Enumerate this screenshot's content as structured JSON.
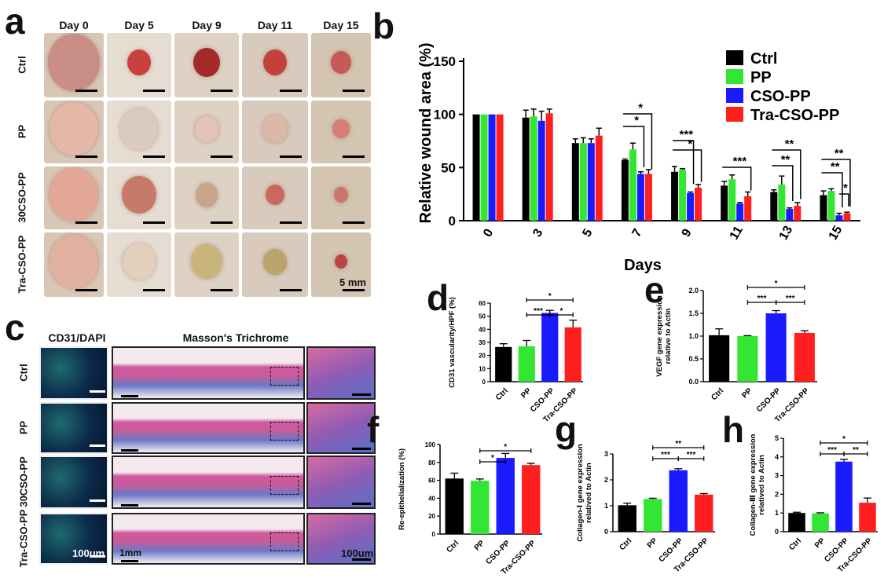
{
  "colors": {
    "ctrl": "#000000",
    "pp": "#33e633",
    "cso": "#1a1aff",
    "tra": "#ff1f1f"
  },
  "panel_letters": {
    "a": "a",
    "b": "b",
    "c": "c",
    "d": "d",
    "e": "e",
    "f": "f",
    "g": "g",
    "h": "h"
  },
  "panel_a": {
    "day_labels": [
      "Day 0",
      "Day 5",
      "Day 9",
      "Day 11",
      "Day 15"
    ],
    "row_labels": [
      "Ctrl",
      "PP",
      "30CSO-PP",
      "Tra-CSO-PP"
    ],
    "scale_label": "5 mm",
    "photo_descriptions": [
      "wound photo"
    ]
  },
  "panel_c": {
    "headers": {
      "cd31": "CD31/DAPI",
      "masson": "Masson's Trichrome"
    },
    "row_labels": [
      "Ctrl",
      "PP",
      "30CSO-PP",
      "Tra-CSO-PP"
    ],
    "scale_labels": {
      "fluor": "100um",
      "masson": "1mm",
      "zoom": "100um"
    }
  },
  "chart_data": [
    {
      "panel": "b",
      "type": "bar",
      "ylabel": "Relative wound area (%)",
      "xlabel": "Days",
      "ylim": [
        0,
        150
      ],
      "yticks": [
        0,
        50,
        100,
        150
      ],
      "categories": [
        "0",
        "3",
        "5",
        "7",
        "9",
        "11",
        "13",
        "15"
      ],
      "legend_position": "top-right",
      "series": [
        {
          "name": "Ctrl",
          "values": [
            100,
            97,
            73,
            57,
            46,
            33,
            27,
            24
          ],
          "errors": [
            0,
            7,
            4,
            1,
            5,
            4,
            2,
            4
          ]
        },
        {
          "name": "PP",
          "values": [
            100,
            98,
            73,
            67,
            48,
            39,
            34,
            28
          ],
          "errors": [
            0,
            7,
            5,
            6,
            1,
            4,
            8,
            2
          ]
        },
        {
          "name": "CSO-PP",
          "values": [
            100,
            94,
            73,
            44,
            26,
            16,
            11,
            5
          ],
          "errors": [
            0,
            9,
            4,
            2,
            1,
            1,
            1,
            2
          ]
        },
        {
          "name": "Tra-CSO-PP",
          "values": [
            100,
            101,
            80,
            44,
            31,
            23,
            14,
            7
          ],
          "errors": [
            0,
            4,
            7,
            4,
            3,
            4,
            3,
            1
          ]
        }
      ],
      "annotations": [
        {
          "day": "7",
          "marks": [
            "*",
            "*"
          ]
        },
        {
          "day": "9",
          "marks": [
            "***",
            "*"
          ]
        },
        {
          "day": "11",
          "marks": [
            "***"
          ]
        },
        {
          "day": "13",
          "marks": [
            "**",
            "**"
          ]
        },
        {
          "day": "15",
          "marks": [
            "**",
            "**",
            "*"
          ]
        }
      ]
    },
    {
      "panel": "d",
      "type": "bar",
      "ylabel": "CD31 vascularity/HPF (%)",
      "ylim": [
        0,
        60
      ],
      "yticks": [
        0,
        10,
        20,
        30,
        40,
        50,
        60
      ],
      "categories": [
        "Ctrl",
        "PP",
        "CSO-PP",
        "Tra-CSO-PP"
      ],
      "values": [
        26.5,
        27,
        52.5,
        41.5
      ],
      "errors": [
        2.5,
        4.5,
        2,
        5.5
      ],
      "significance": [
        {
          "from": "PP",
          "to": "Tra-CSO-PP",
          "mark": "*"
        },
        {
          "from": "PP",
          "to": "CSO-PP",
          "mark": "***"
        },
        {
          "from": "CSO-PP",
          "to": "Tra-CSO-PP",
          "mark": "*"
        }
      ]
    },
    {
      "panel": "e",
      "type": "bar",
      "ylabel": "VEGF gene expression relative to Actin",
      "ylim": [
        0,
        2.0
      ],
      "yticks": [
        0.0,
        0.5,
        1.0,
        1.5,
        2.0
      ],
      "categories": [
        "Ctrl",
        "PP",
        "CSO-PP",
        "Tra-CSO-PP"
      ],
      "values": [
        1.02,
        1.0,
        1.5,
        1.07
      ],
      "errors": [
        0.14,
        0.01,
        0.06,
        0.05
      ],
      "significance": [
        {
          "from": "PP",
          "to": "Tra-CSO-PP",
          "mark": "*"
        },
        {
          "from": "PP",
          "to": "CSO-PP",
          "mark": "***"
        },
        {
          "from": "CSO-PP",
          "to": "Tra-CSO-PP",
          "mark": "***"
        }
      ]
    },
    {
      "panel": "f",
      "type": "bar",
      "ylabel": "Re-epithelialization (%)",
      "ylim": [
        0,
        100
      ],
      "yticks": [
        0,
        20,
        40,
        60,
        80,
        100
      ],
      "categories": [
        "Ctrl",
        "PP",
        "CSO-PP",
        "Tra-CSO-PP"
      ],
      "values": [
        62,
        59.5,
        85,
        77
      ],
      "errors": [
        6,
        2,
        5,
        2
      ],
      "significance": [
        {
          "from": "PP",
          "to": "Tra-CSO-PP",
          "mark": "*"
        },
        {
          "from": "PP",
          "to": "CSO-PP",
          "mark": "*"
        }
      ]
    },
    {
      "panel": "g",
      "type": "bar",
      "ylabel": "Collagen-Ⅰ gene expression relatived to Actin",
      "ylim": [
        0,
        3
      ],
      "yticks": [
        0,
        1,
        2,
        3
      ],
      "categories": [
        "Ctrl",
        "PP",
        "CSO-PP",
        "Tra-CSO-PP"
      ],
      "values": [
        1.02,
        1.26,
        2.37,
        1.43
      ],
      "errors": [
        0.08,
        0.03,
        0.06,
        0.04
      ],
      "significance": [
        {
          "from": "PP",
          "to": "Tra-CSO-PP",
          "mark": "**"
        },
        {
          "from": "PP",
          "to": "CSO-PP",
          "mark": "***"
        },
        {
          "from": "CSO-PP",
          "to": "Tra-CSO-PP",
          "mark": "***"
        }
      ]
    },
    {
      "panel": "h",
      "type": "bar",
      "ylabel": "Collagen-Ⅲ gene expression relatived to Actin",
      "ylim": [
        0,
        5
      ],
      "yticks": [
        0,
        1,
        2,
        3,
        4,
        5
      ],
      "categories": [
        "Ctrl",
        "PP",
        "CSO-PP",
        "Tra-CSO-PP"
      ],
      "values": [
        1.0,
        0.98,
        3.75,
        1.55
      ],
      "errors": [
        0.04,
        0.03,
        0.12,
        0.25
      ],
      "significance": [
        {
          "from": "PP",
          "to": "Tra-CSO-PP",
          "mark": "*"
        },
        {
          "from": "PP",
          "to": "CSO-PP",
          "mark": "***"
        },
        {
          "from": "CSO-PP",
          "to": "Tra-CSO-PP",
          "mark": "**"
        }
      ]
    }
  ]
}
